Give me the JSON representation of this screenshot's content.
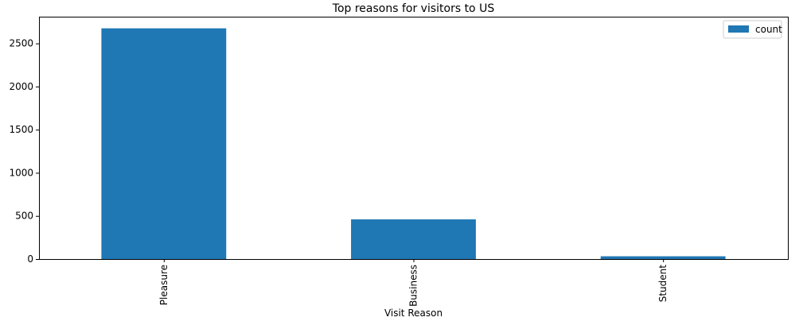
{
  "chart_data": {
    "type": "bar",
    "title": "Top reasons for visitors to US",
    "xlabel": "Visit Reason",
    "ylabel": "",
    "categories": [
      "Pleasure",
      "Business",
      "Student"
    ],
    "series": [
      {
        "name": "count",
        "values": [
          2675,
          460,
          32
        ]
      }
    ],
    "ylim": [
      0,
      2810
    ],
    "yticks": [
      0,
      500,
      1000,
      1500,
      2000,
      2500
    ],
    "grid": false,
    "legend_position": "top-right",
    "x_tick_rotation": "vertical",
    "bar_color": "#1f77b4"
  }
}
